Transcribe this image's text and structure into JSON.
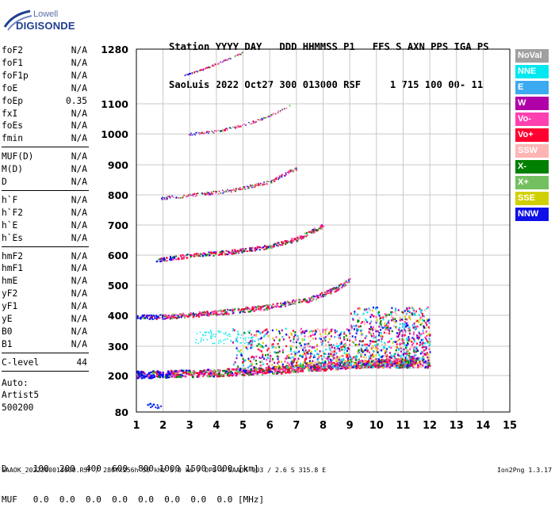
{
  "logo": {
    "line1": "Lowell",
    "line2": "DIGISONDE"
  },
  "header": {
    "labels": "Station YYYY DAY   DDD HHMMSS P1   FFS S AXN PPS IGA PS",
    "values": "SaoLuis 2022 Oct27 300 013000 RSF     1 715 100 00- 11"
  },
  "params": [
    {
      "k": "foF2",
      "v": "N/A"
    },
    {
      "k": "foF1",
      "v": "N/A"
    },
    {
      "k": "foF1p",
      "v": "N/A"
    },
    {
      "k": "foE",
      "v": "N/A"
    },
    {
      "k": "foEp",
      "v": "0.35"
    },
    {
      "k": "fxI",
      "v": "N/A"
    },
    {
      "k": "foEs",
      "v": "N/A"
    },
    {
      "k": "fmin",
      "v": "N/A"
    },
    {
      "k": "MUF(D)",
      "v": "N/A"
    },
    {
      "k": "M(D)",
      "v": "N/A"
    },
    {
      "k": "D",
      "v": "N/A"
    },
    {
      "k": "h`F",
      "v": "N/A"
    },
    {
      "k": "h`F2",
      "v": "N/A"
    },
    {
      "k": "h`E",
      "v": "N/A"
    },
    {
      "k": "h`Es",
      "v": "N/A"
    },
    {
      "k": "hmF2",
      "v": "N/A"
    },
    {
      "k": "hmF1",
      "v": "N/A"
    },
    {
      "k": "hmE",
      "v": "N/A"
    },
    {
      "k": "yF2",
      "v": "N/A"
    },
    {
      "k": "yF1",
      "v": "N/A"
    },
    {
      "k": "yE",
      "v": "N/A"
    },
    {
      "k": "B0",
      "v": "N/A"
    },
    {
      "k": "B1",
      "v": "N/A"
    },
    {
      "k": "C-level",
      "v": "44"
    }
  ],
  "auto": [
    "Auto:",
    "Artist5",
    "500200"
  ],
  "legend": [
    {
      "label": "NoVal",
      "color": "#a0a0a0"
    },
    {
      "label": "NNE",
      "color": "#00e8f0"
    },
    {
      "label": "E",
      "color": "#3caaf0"
    },
    {
      "label": "W",
      "color": "#b000a8"
    },
    {
      "label": "Vo-",
      "color": "#ff40b0"
    },
    {
      "label": "Vo+",
      "color": "#ff0030"
    },
    {
      "label": "SSW",
      "color": "#ffb4b4"
    },
    {
      "label": "X-",
      "color": "#008000"
    },
    {
      "label": "X+",
      "color": "#74c060"
    },
    {
      "label": "SSE",
      "color": "#d0d000"
    },
    {
      "label": "NNW",
      "color": "#1010e8"
    }
  ],
  "table": {
    "row1": "D     100  200  400  600  800 1000 1500 3000 [km]",
    "row2": "MUF   0.0  0.0  0.0  0.0  0.0  0.0  0.0  0.0 [MHz]"
  },
  "footer": "SAAOK_2022300013000.RSF / 280fx256h 50 kHz 5.0 km / DPS-4 SAAOK 903 / 2.6 S 315.8 E",
  "version": "Ion2Png 1.3.17",
  "chart_data": {
    "type": "scatter",
    "title": "",
    "xlabel": "",
    "ylabel": "",
    "xlim": [
      1,
      15
    ],
    "ylim": [
      80,
      1280
    ],
    "x_ticks": [
      1,
      2,
      3,
      4,
      5,
      6,
      7,
      8,
      9,
      10,
      11,
      12,
      13,
      14,
      15
    ],
    "y_ticks": [
      80,
      200,
      300,
      400,
      500,
      600,
      700,
      800,
      900,
      1000,
      1100,
      1280
    ],
    "grid": true,
    "y_scale": "nonlinear (compressed toward top)",
    "series": [
      {
        "description_ref": "trace_1",
        "x": [
          1.0,
          2.0,
          4.0,
          6.0,
          8.0,
          10.0,
          11.5
        ],
        "y": [
          205,
          207,
          212,
          220,
          232,
          245,
          252
        ]
      },
      {
        "description_ref": "trace_2",
        "x": [
          1.0,
          2.0,
          4.0,
          6.0,
          7.5,
          8.5,
          9.0
        ],
        "y": [
          395,
          397,
          410,
          430,
          455,
          490,
          520
        ]
      },
      {
        "description_ref": "trace_3",
        "x": [
          1.7,
          3.0,
          4.5,
          6.0,
          7.0,
          8.0
        ],
        "y": [
          585,
          600,
          612,
          630,
          655,
          700
        ]
      },
      {
        "description_ref": "trace_4",
        "x": [
          1.9,
          3.0,
          4.5,
          6.0,
          7.0
        ],
        "y": [
          790,
          800,
          815,
          845,
          890
        ]
      },
      {
        "description_ref": "trace_5",
        "x": [
          2.9,
          4.0,
          5.0,
          6.0,
          6.8
        ],
        "y": [
          1000,
          1010,
          1030,
          1060,
          1100
        ]
      },
      {
        "description_ref": "trace_6",
        "x": [
          2.8,
          3.5,
          4.2,
          5.0
        ],
        "y": [
          1195,
          1215,
          1240,
          1270
        ]
      }
    ]
  }
}
